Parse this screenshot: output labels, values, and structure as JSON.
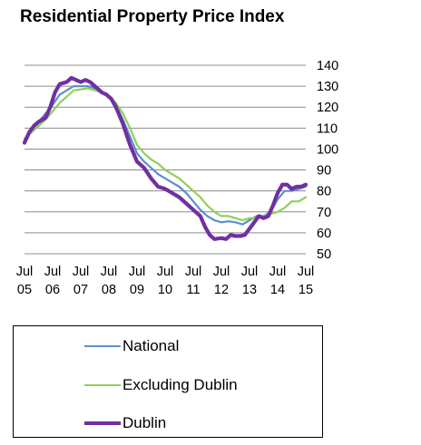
{
  "chart_data": {
    "type": "line",
    "title": "Residential Property Price Index",
    "xlabel": "",
    "ylabel": "",
    "ylim": [
      50,
      140
    ],
    "yticks": [
      50,
      60,
      70,
      80,
      90,
      100,
      110,
      120,
      130,
      140
    ],
    "grid": true,
    "legend_position": "bottom",
    "x_tick_labels": [
      {
        "t": 0,
        "line1": "Jul",
        "line2": "05"
      },
      {
        "t": 12,
        "line1": "Jul",
        "line2": "06"
      },
      {
        "t": 24,
        "line1": "Jul",
        "line2": "07"
      },
      {
        "t": 36,
        "line1": "Jul",
        "line2": "08"
      },
      {
        "t": 48,
        "line1": "Jul",
        "line2": "09"
      },
      {
        "t": 60,
        "line1": "Jul",
        "line2": "10"
      },
      {
        "t": 72,
        "line1": "Jul",
        "line2": "11"
      },
      {
        "t": 84,
        "line1": "Jul",
        "line2": "12"
      },
      {
        "t": 96,
        "line1": "Jul",
        "line2": "13"
      },
      {
        "t": 108,
        "line1": "Jul",
        "line2": "14"
      },
      {
        "t": 120,
        "line1": "Jul",
        "line2": "15"
      }
    ],
    "series": [
      {
        "name": "National",
        "color": "#5B8FCF",
        "width": 2.2,
        "points": [
          [
            0,
            104
          ],
          [
            3,
            109
          ],
          [
            6,
            113
          ],
          [
            9,
            117
          ],
          [
            12,
            121
          ],
          [
            15,
            126
          ],
          [
            18,
            128
          ],
          [
            21,
            130
          ],
          [
            24,
            130
          ],
          [
            27,
            130
          ],
          [
            30,
            129
          ],
          [
            33,
            127
          ],
          [
            36,
            125
          ],
          [
            39,
            121
          ],
          [
            42,
            114
          ],
          [
            45,
            106
          ],
          [
            48,
            98
          ],
          [
            51,
            94
          ],
          [
            54,
            91
          ],
          [
            57,
            88
          ],
          [
            60,
            86
          ],
          [
            63,
            84
          ],
          [
            66,
            82
          ],
          [
            69,
            79
          ],
          [
            72,
            75
          ],
          [
            75,
            71
          ],
          [
            78,
            68
          ],
          [
            81,
            66
          ],
          [
            84,
            65
          ],
          [
            87,
            65.5
          ],
          [
            90,
            65
          ],
          [
            93,
            64
          ],
          [
            96,
            66
          ],
          [
            99,
            68
          ],
          [
            102,
            68
          ],
          [
            105,
            70
          ],
          [
            108,
            76
          ],
          [
            111,
            80
          ],
          [
            114,
            80
          ],
          [
            117,
            81
          ],
          [
            120,
            82
          ]
        ]
      },
      {
        "name": "Excluding Dublin",
        "color": "#8ED05A",
        "width": 2.2,
        "points": [
          [
            0,
            105
          ],
          [
            3,
            108
          ],
          [
            6,
            111
          ],
          [
            9,
            114
          ],
          [
            12,
            118
          ],
          [
            15,
            122
          ],
          [
            18,
            125
          ],
          [
            21,
            128
          ],
          [
            24,
            128.5
          ],
          [
            27,
            129
          ],
          [
            30,
            128
          ],
          [
            33,
            127
          ],
          [
            36,
            125
          ],
          [
            39,
            122
          ],
          [
            42,
            117
          ],
          [
            45,
            110
          ],
          [
            48,
            102
          ],
          [
            51,
            98
          ],
          [
            54,
            95
          ],
          [
            57,
            93
          ],
          [
            60,
            90
          ],
          [
            63,
            88
          ],
          [
            66,
            86
          ],
          [
            69,
            83
          ],
          [
            72,
            80
          ],
          [
            75,
            77
          ],
          [
            78,
            73
          ],
          [
            81,
            70
          ],
          [
            84,
            68
          ],
          [
            87,
            68
          ],
          [
            90,
            67
          ],
          [
            93,
            66
          ],
          [
            96,
            67
          ],
          [
            99,
            67
          ],
          [
            102,
            68
          ],
          [
            105,
            69
          ],
          [
            108,
            70
          ],
          [
            111,
            72
          ],
          [
            114,
            75
          ],
          [
            117,
            75
          ],
          [
            120,
            77
          ]
        ]
      },
      {
        "name": "Dublin",
        "color": "#7030A0",
        "width": 4.2,
        "points": [
          [
            0,
            103
          ],
          [
            2,
            108
          ],
          [
            4,
            111
          ],
          [
            6,
            113
          ],
          [
            9,
            115
          ],
          [
            11,
            120
          ],
          [
            13,
            127
          ],
          [
            15,
            131
          ],
          [
            18,
            132
          ],
          [
            20,
            134
          ],
          [
            22,
            133
          ],
          [
            24,
            132
          ],
          [
            26,
            133
          ],
          [
            28,
            132
          ],
          [
            30,
            130
          ],
          [
            33,
            127
          ],
          [
            35,
            126
          ],
          [
            37,
            124
          ],
          [
            39,
            120
          ],
          [
            42,
            112
          ],
          [
            45,
            102
          ],
          [
            48,
            94
          ],
          [
            51,
            91
          ],
          [
            54,
            86
          ],
          [
            57,
            82
          ],
          [
            60,
            81
          ],
          [
            63,
            79
          ],
          [
            66,
            77
          ],
          [
            69,
            74
          ],
          [
            72,
            71
          ],
          [
            75,
            68
          ],
          [
            77,
            63
          ],
          [
            79,
            59
          ],
          [
            81,
            57
          ],
          [
            84,
            57.5
          ],
          [
            86,
            57
          ],
          [
            88,
            59
          ],
          [
            90,
            58.5
          ],
          [
            92,
            58.5
          ],
          [
            94,
            59
          ],
          [
            96,
            62
          ],
          [
            98,
            65
          ],
          [
            100,
            68
          ],
          [
            102,
            67
          ],
          [
            104,
            68
          ],
          [
            106,
            73
          ],
          [
            108,
            79
          ],
          [
            110,
            83
          ],
          [
            112,
            83
          ],
          [
            114,
            81
          ],
          [
            116,
            82
          ],
          [
            118,
            82
          ],
          [
            120,
            83
          ]
        ]
      }
    ]
  }
}
